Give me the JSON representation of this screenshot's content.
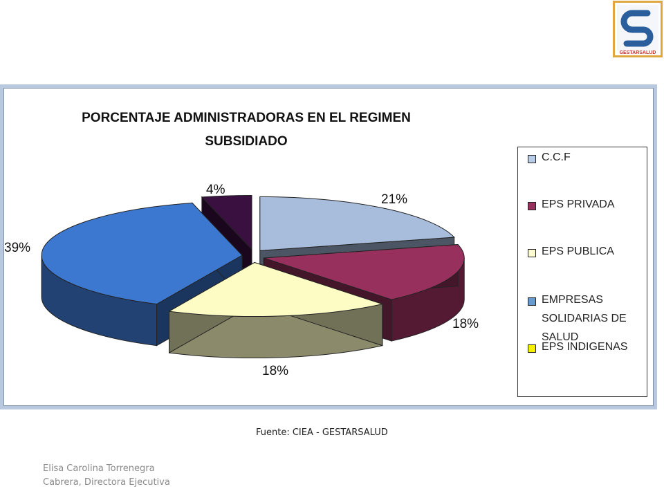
{
  "logo": {
    "text": "GESTARSALUD",
    "border_color": "#e0a640",
    "brand_color": "#2a5e9c"
  },
  "chart_data": {
    "type": "pie",
    "title": "PORCENTAJE ADMINISTRADORAS EN EL REGIMEN\nSUBSIDIADO",
    "legend_position": "right",
    "slices": [
      {
        "name": "C.C.F",
        "value": 21,
        "label": "21%",
        "color": "#a8bcdc"
      },
      {
        "name": "EPS PRIVADA",
        "value": 18,
        "label": "18%",
        "color": "#98305e"
      },
      {
        "name": "EPS PUBLICA",
        "value": 18,
        "label": "18%",
        "color": "#fcfcc4"
      },
      {
        "name": "EMPRESAS SOLIDARIAS DE SALUD",
        "value": 39,
        "label": "39%",
        "color": "#3c78d0"
      },
      {
        "name": "EPS INDIGENAS",
        "value": 4,
        "label": "4%",
        "color": "#3a1040"
      }
    ],
    "legend": [
      {
        "label": "C.C.F",
        "color": "#b8cce8"
      },
      {
        "label": "EPS PRIVADA",
        "color": "#98305e"
      },
      {
        "label": "EPS PUBLICA",
        "color": "#fefcd0"
      },
      {
        "label": "EMPRESAS SOLIDARIAS DE SALUD",
        "color": "#6a98d0"
      },
      {
        "label": "EPS INDIGENAS",
        "color": "#f4f000"
      }
    ]
  },
  "source": "Fuente: CIEA - GESTARSALUD",
  "author": "Elisa Carolina Torrenegra Cabrera, Directora Ejecutiva"
}
